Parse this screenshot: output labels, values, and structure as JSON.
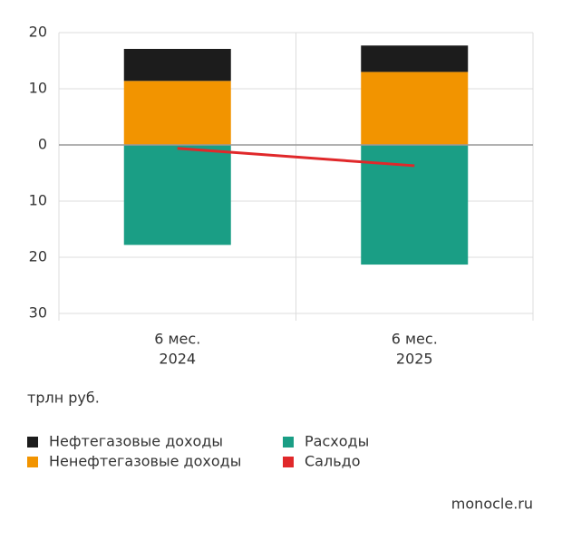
{
  "chart_data": {
    "type": "bar",
    "stacked": true,
    "categories": [
      [
        "6 мес.",
        "2024"
      ],
      [
        "6 мес.",
        "2025"
      ]
    ],
    "series": [
      {
        "name": "Нефтегазовые доходы",
        "color": "#1c1c1c",
        "values": [
          5.7,
          4.7
        ]
      },
      {
        "name": "Ненефтегазовые доходы",
        "color": "#f29400",
        "values": [
          11.4,
          13.0
        ]
      },
      {
        "name": "Расходы",
        "color": "#1a9e85",
        "values": [
          -17.8,
          -21.3
        ]
      },
      {
        "name": "Сальдо",
        "color": "#e0282a",
        "type": "line",
        "values": [
          -0.6,
          -3.7
        ]
      }
    ],
    "ylim": [
      -30,
      20
    ],
    "yticks": [
      {
        "value": -30,
        "label": "30"
      },
      {
        "value": -20,
        "label": "20"
      },
      {
        "value": -10,
        "label": "10"
      },
      0,
      10,
      20
    ],
    "grid": true,
    "unit": "трлн руб.",
    "source": "monocle.ru"
  }
}
